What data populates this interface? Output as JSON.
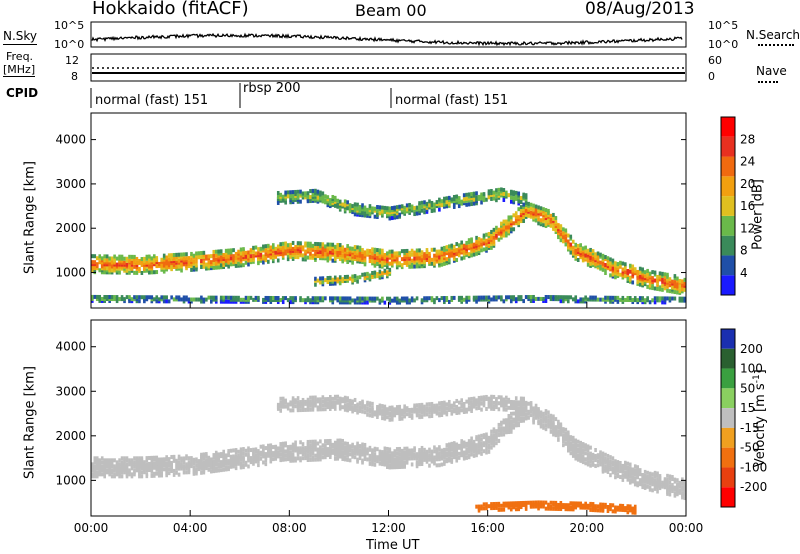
{
  "header": {
    "station": "Hokkaido (fitACF)",
    "beam": "Beam 00",
    "date": "08/Aug/2013"
  },
  "top_panel": {
    "left_label": "N.Sky",
    "right_label": "N.Search",
    "left_ticks": [
      "10^5",
      "10^0"
    ],
    "right_ticks": [
      "10^5",
      "10^0"
    ]
  },
  "freq_panel": {
    "left_label_1": "Freq.",
    "left_label_2": "[MHz]",
    "left_ticks": [
      "12",
      "8"
    ],
    "right_label": "Nave",
    "right_ticks": [
      "60",
      "0"
    ]
  },
  "cpid": {
    "label": "CPID",
    "segments": [
      {
        "label": "normal (fast) 151",
        "start_hour": 0
      },
      {
        "label": "rbsp 200",
        "start_hour": 6
      },
      {
        "label": "normal (fast) 151",
        "start_hour": 12
      }
    ]
  },
  "x_axis": {
    "label": "Time UT",
    "tick_labels": [
      "00:00",
      "04:00",
      "08:00",
      "12:00",
      "16:00",
      "20:00",
      "00:00"
    ],
    "range_hours": [
      0,
      24
    ]
  },
  "power_panel": {
    "ylabel": "Slant Range [km]",
    "yticks": [
      "1000",
      "2000",
      "3000",
      "4000"
    ],
    "colorbar_label": "Power [dB]",
    "colorbar_ticks": [
      "4",
      "8",
      "12",
      "16",
      "20",
      "24",
      "28"
    ]
  },
  "velocity_panel": {
    "ylabel": "Slant Range [km]",
    "yticks": [
      "1000",
      "2000",
      "3000",
      "4000"
    ],
    "colorbar_label": "Velocity [m s",
    "colorbar_label_sup": "-1",
    "colorbar_label_end": "]",
    "colorbar_ticks": [
      "200",
      "100",
      "50",
      "15",
      "-15",
      "-50",
      "-100",
      "-200"
    ]
  },
  "colors": {
    "power_scale": [
      "#1a1aff",
      "#1f4fa8",
      "#3a8a5a",
      "#6ab94a",
      "#e0c020",
      "#f2a010",
      "#f06a10",
      "#e83020",
      "#ff0000"
    ],
    "velocity_scale": [
      "#1a2fb0",
      "#2a6030",
      "#3aa040",
      "#8ad060",
      "#bfbfbf",
      "#f0a020",
      "#f07010",
      "#e84010",
      "#ff0000"
    ],
    "ground_scatter": "#bebebe"
  },
  "chart_data": {
    "type": "heatmap",
    "x_unit": "hours UT",
    "y_unit": "km",
    "ylim": [
      200,
      4600
    ],
    "xlim": [
      0,
      24
    ],
    "grid": false,
    "power_bands": [
      {
        "name": "main",
        "points": [
          [
            0,
            1200
          ],
          [
            2,
            1180
          ],
          [
            4,
            1250
          ],
          [
            6,
            1350
          ],
          [
            8,
            1500
          ],
          [
            10,
            1450
          ],
          [
            12,
            1300
          ],
          [
            14,
            1350
          ],
          [
            16,
            1700
          ],
          [
            17.5,
            2400
          ],
          [
            18.5,
            2200
          ],
          [
            19.5,
            1500
          ],
          [
            21,
            1100
          ],
          [
            22.5,
            850
          ],
          [
            24,
            700
          ]
        ],
        "width": 380,
        "level": 26
      },
      {
        "name": "upper",
        "points": [
          [
            7.5,
            2700
          ],
          [
            9,
            2750
          ],
          [
            10.5,
            2450
          ],
          [
            12,
            2350
          ],
          [
            13.5,
            2500
          ],
          [
            15,
            2650
          ],
          [
            16.5,
            2780
          ],
          [
            17.5,
            2650
          ]
        ],
        "width": 260,
        "level": 14
      },
      {
        "name": "lower",
        "points": [
          [
            9,
            800
          ],
          [
            10.5,
            850
          ],
          [
            12,
            1000
          ]
        ],
        "width": 150,
        "level": 18
      },
      {
        "name": "near",
        "points": [
          [
            0,
            420
          ],
          [
            6,
            400
          ],
          [
            12,
            380
          ],
          [
            18,
            420
          ],
          [
            24,
            380
          ]
        ],
        "width": 120,
        "level": 10
      }
    ],
    "velocity_bands": [
      {
        "name": "ground_scatter",
        "points": [
          [
            0,
            1300
          ],
          [
            2,
            1300
          ],
          [
            4,
            1350
          ],
          [
            6,
            1500
          ],
          [
            8,
            1650
          ],
          [
            10,
            1700
          ],
          [
            12,
            1500
          ],
          [
            14,
            1550
          ],
          [
            16,
            1850
          ],
          [
            17.5,
            2600
          ],
          [
            18.5,
            2300
          ],
          [
            19.5,
            1700
          ],
          [
            21,
            1300
          ],
          [
            22.5,
            1000
          ],
          [
            24,
            800
          ]
        ],
        "width": 420,
        "level": 0
      },
      {
        "name": "upper",
        "points": [
          [
            7.5,
            2700
          ],
          [
            10,
            2750
          ],
          [
            12,
            2500
          ],
          [
            14,
            2600
          ],
          [
            16,
            2750
          ],
          [
            17.5,
            2700
          ]
        ],
        "width": 280,
        "level": 0
      },
      {
        "name": "negative",
        "points": [
          [
            15.5,
            400
          ],
          [
            18,
            450
          ],
          [
            20,
            420
          ],
          [
            22,
            350
          ]
        ],
        "width": 160,
        "level": -60
      }
    ]
  }
}
